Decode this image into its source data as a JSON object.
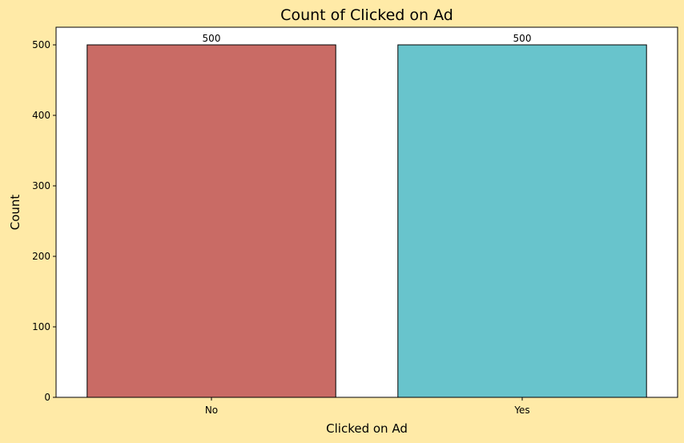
{
  "chart_data": {
    "type": "bar",
    "title": "Count of Clicked on Ad",
    "xlabel": "Clicked on Ad",
    "ylabel": "Count",
    "categories": [
      "No",
      "Yes"
    ],
    "values": [
      500,
      500
    ],
    "data_labels": [
      "500",
      "500"
    ],
    "colors": [
      "#c96b65",
      "#68c4cc"
    ],
    "ylim": [
      0,
      525
    ],
    "yticks": [
      0,
      100,
      200,
      300,
      400,
      500
    ],
    "grid": false,
    "legend": "none"
  },
  "colors": {
    "figure_background": "#ffeaa7",
    "plot_background": "#ffffff",
    "bar_edge": "#000000"
  }
}
